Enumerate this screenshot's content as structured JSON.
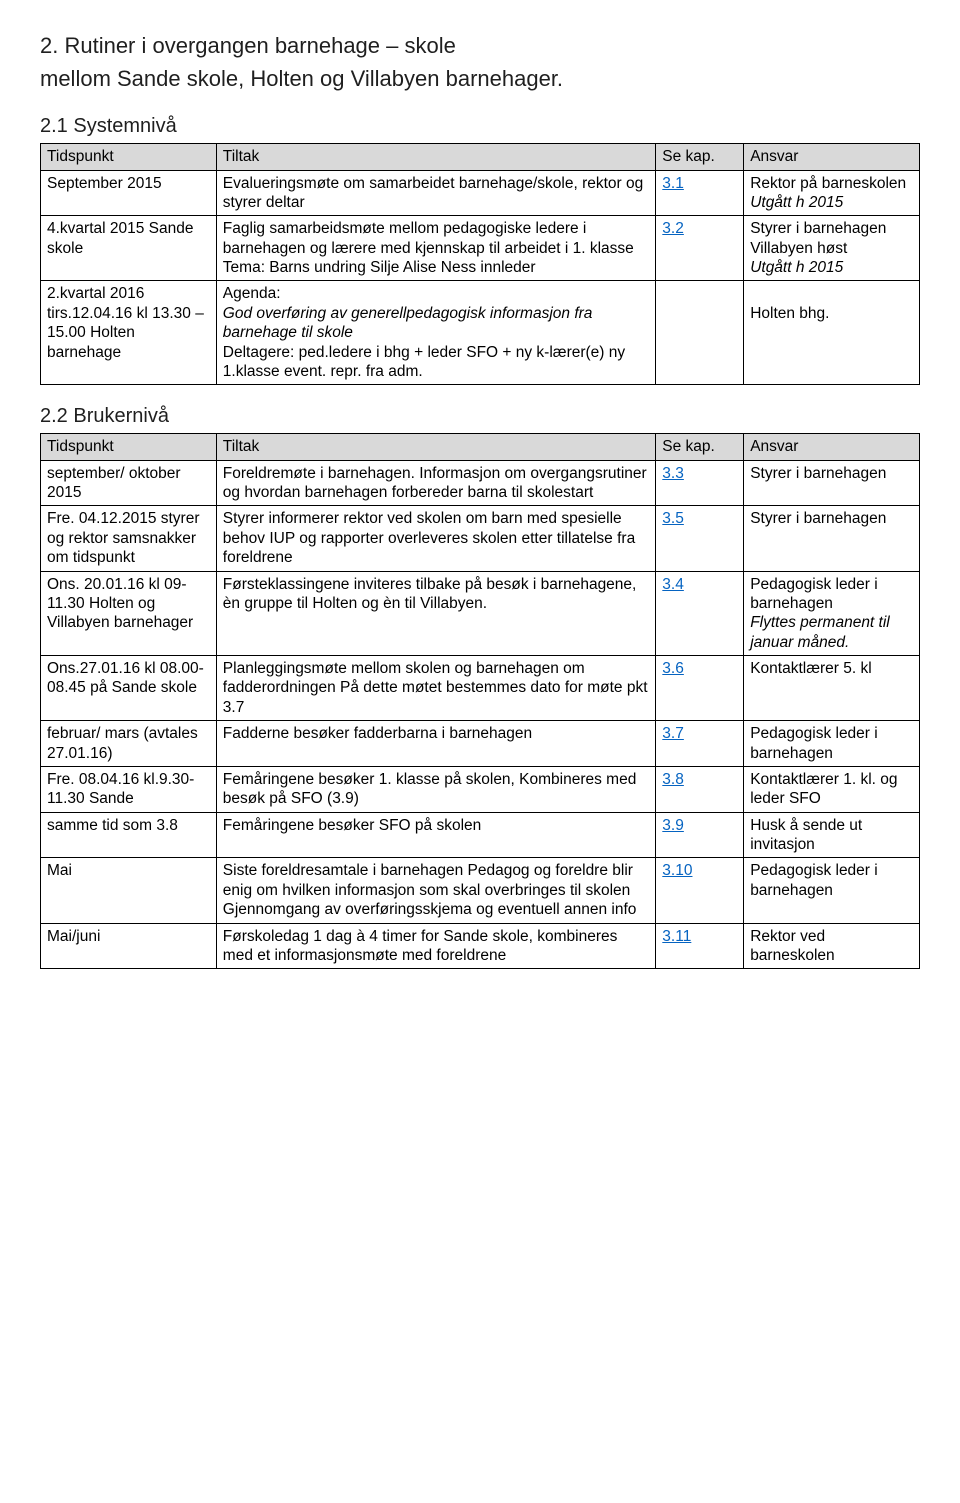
{
  "headings": {
    "main_num_title": "2. Rutiner i overgangen barnehage – skole",
    "main_sub": "mellom Sande skole, Holten og Villabyen barnehager.",
    "s21": "2.1 Systemnivå",
    "s22": "2.2 Brukernivå"
  },
  "columns": {
    "c1": "Tidspunkt",
    "c2": "Tiltak",
    "c3": "Se kap.",
    "c4": "Ansvar"
  },
  "t1": {
    "r1": {
      "c1": "September 2015",
      "c2": "Evalueringsmøte om samarbeidet barnehage/skole, rektor og styrer deltar",
      "c3": "3.1",
      "c4_a": "Rektor på barneskolen",
      "c4_b": "Utgått h 2015"
    },
    "r2": {
      "c1": "4.kvartal 2015 Sande skole",
      "c2": "Faglig samarbeidsmøte mellom pedagogiske ledere i barnehagen og lærere med kjennskap til arbeidet i 1. klasse Tema: Barns undring Silje Alise Ness innleder",
      "c3": "3.2",
      "c4_a": "Styrer i barnehagen Villabyen høst",
      "c4_b": "Utgått h 2015"
    },
    "r3": {
      "c1": "2.kvartal 2016 tirs.12.04.16 kl 13.30 – 15.00 Holten barnehage",
      "c2_a": "Agenda:",
      "c2_b": "God overføring av generellpedagogisk informasjon fra barnehage til skole",
      "c2_c": "Deltagere: ped.ledere i bhg + leder SFO + ny k-lærer(e) ny 1.klasse event. repr. fra adm.",
      "c3": "",
      "c4": "Holten bhg."
    }
  },
  "t2": {
    "r1": {
      "c1": "september/ oktober 2015",
      "c2": "Foreldremøte i barnehagen. Informasjon om overgangsrutiner og hvordan barnehagen forbereder barna til skolestart",
      "c3": "3.3",
      "c4": "Styrer i barnehagen"
    },
    "r2": {
      "c1": "Fre. 04.12.2015 styrer og rektor samsnakker om tidspunkt",
      "c2": "Styrer informerer rektor ved skolen om barn med spesielle behov IUP og rapporter overleveres skolen etter tillatelse fra foreldrene",
      "c3": "3.5",
      "c4": "Styrer i barnehagen"
    },
    "r3": {
      "c1": "Ons. 20.01.16 kl 09-11.30 Holten og Villabyen barnehager",
      "c2": "Førsteklassingene inviteres tilbake på besøk i barnehagene, èn gruppe til Holten og èn til Villabyen.",
      "c3": "3.4",
      "c4_a": "Pedagogisk leder i barnehagen",
      "c4_b": "Flyttes permanent til januar måned."
    },
    "r4": {
      "c1": "Ons.27.01.16 kl 08.00-08.45 på Sande skole",
      "c2": "Planleggingsmøte mellom skolen og barnehagen om fadderordningen På dette møtet bestemmes dato for møte pkt 3.7",
      "c3": "3.6",
      "c4": "Kontaktlærer 5. kl"
    },
    "r5": {
      "c1": "februar/ mars (avtales 27.01.16)",
      "c2": "Fadderne besøker fadderbarna i barnehagen",
      "c3": "3.7",
      "c4": "Pedagogisk leder i barnehagen"
    },
    "r6": {
      "c1": "Fre. 08.04.16 kl.9.30-11.30 Sande",
      "c2": "Femåringene besøker 1. klasse på skolen, Kombineres med besøk på SFO (3.9)",
      "c3": "3.8",
      "c4": "Kontaktlærer 1. kl. og leder SFO"
    },
    "r7": {
      "c1": "samme tid som 3.8",
      "c2": "Femåringene besøker SFO på skolen",
      "c3": "3.9",
      "c4": "Husk å sende ut invitasjon"
    },
    "r8": {
      "c1": "Mai",
      "c2": "Siste foreldresamtale i barnehagen Pedagog og foreldre blir enig om hvilken informasjon som skal overbringes til skolen Gjennomgang av overføringsskjema og eventuell annen info",
      "c3": "3.10",
      "c4": "Pedagogisk leder i barnehagen"
    },
    "r9": {
      "c1": "Mai/juni",
      "c2": "Førskoledag 1 dag à 4 timer for Sande skole, kombineres med et informasjonsmøte med foreldrene",
      "c3": "3.11",
      "c4": "Rektor ved barneskolen"
    }
  }
}
